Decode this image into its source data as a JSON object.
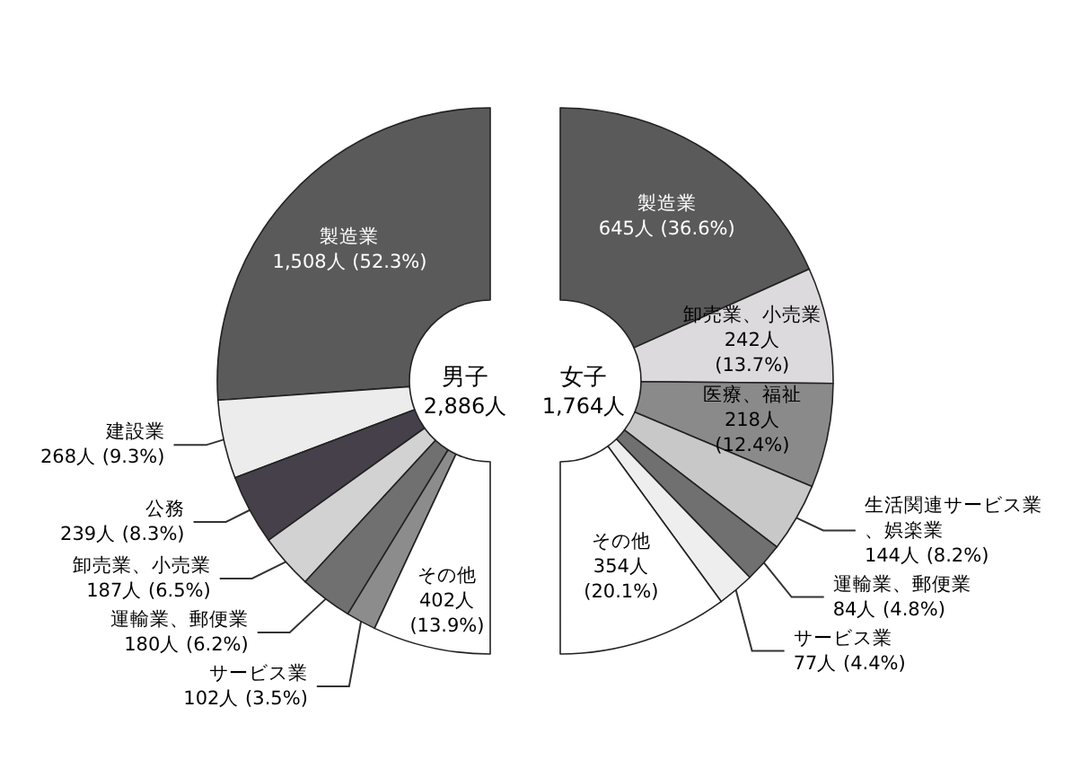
{
  "chart_data": [
    {
      "type": "donut",
      "title": "男子",
      "subtitle": "2,886人",
      "categories": [
        "製造業",
        "建設業",
        "公務",
        "卸売業、小売業",
        "運輸業、郵便業",
        "サービス業",
        "その他"
      ],
      "values": [
        1508,
        268,
        239,
        187,
        180,
        102,
        402
      ],
      "colors": [
        "#5a5a5a",
        "#ececec",
        "#45404a",
        "#d2d2d2",
        "#707070",
        "#8c8c8c",
        "#ffffff"
      ],
      "value_labels": [
        "1,508人 (52.3%)",
        "268人 (9.3%)",
        "239人 (8.3%)",
        "187人 (6.5%)",
        "180人 (6.2%)",
        "102人 (3.5%)",
        "402人 (13.9%)"
      ]
    },
    {
      "type": "donut",
      "title": "女子",
      "subtitle": "1,764人",
      "categories": [
        "製造業",
        "卸売業、小売業",
        "医療、福祉",
        "生活関連サービス業、娯楽業",
        "運輸業、郵便業",
        "サービス業",
        "その他"
      ],
      "values": [
        645,
        242,
        218,
        144,
        84,
        77,
        354
      ],
      "colors": [
        "#5a5a5a",
        "#dcdadc",
        "#8a8a8a",
        "#c8c8c8",
        "#707070",
        "#eeeeee",
        "#ffffff"
      ],
      "value_labels": [
        "645人 (36.6%)",
        "242人 (13.7%)",
        "218人 (12.4%)",
        "144人 (8.2%)",
        "84人 (4.8%)",
        "77人 (4.4%)",
        "354人 (20.1%)"
      ]
    }
  ]
}
